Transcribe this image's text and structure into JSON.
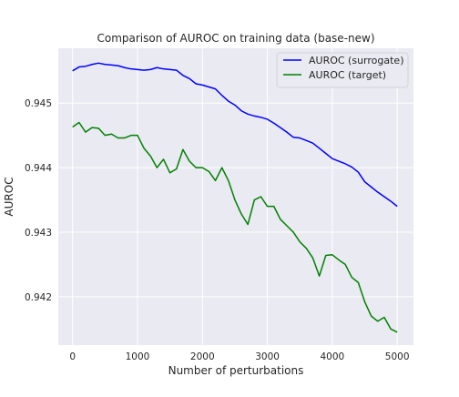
{
  "chart_data": {
    "type": "line",
    "title": "Comparison of AUROC on training data (base-new)",
    "xlabel": "Number of perturbations",
    "ylabel": "AUROC",
    "xlim": [
      -220,
      5250
    ],
    "ylim": [
      0.94125,
      0.94585
    ],
    "xticks": [
      0,
      1000,
      2000,
      3000,
      4000,
      5000
    ],
    "yticks": [
      0.942,
      0.943,
      0.944,
      0.945
    ],
    "xtick_labels": [
      "0",
      "1000",
      "2000",
      "3000",
      "4000",
      "5000"
    ],
    "ytick_labels": [
      "0.942",
      "0.943",
      "0.944",
      "0.945"
    ],
    "grid": true,
    "legend_position": "top-right",
    "x": [
      0,
      100,
      200,
      300,
      400,
      500,
      600,
      700,
      800,
      900,
      1000,
      1100,
      1200,
      1300,
      1400,
      1500,
      1600,
      1700,
      1800,
      1900,
      2000,
      2100,
      2200,
      2300,
      2400,
      2500,
      2600,
      2700,
      2800,
      2900,
      3000,
      3100,
      3200,
      3300,
      3400,
      3500,
      3600,
      3700,
      3800,
      3900,
      4000,
      4100,
      4200,
      4300,
      4400,
      4500,
      4600,
      4700,
      4800,
      4900,
      5000
    ],
    "series": [
      {
        "name": "AUROC (surrogate)",
        "color": "#0000ff",
        "values": [
          0.9455,
          0.94556,
          0.94557,
          0.9456,
          0.94562,
          0.9456,
          0.94559,
          0.94558,
          0.94555,
          0.94553,
          0.94552,
          0.94551,
          0.94552,
          0.94555,
          0.94553,
          0.94552,
          0.94551,
          0.94543,
          0.94538,
          0.9453,
          0.94528,
          0.94525,
          0.94522,
          0.94512,
          0.94503,
          0.94497,
          0.94488,
          0.94483,
          0.9448,
          0.94478,
          0.94475,
          0.94469,
          0.94462,
          0.94455,
          0.94447,
          0.94446,
          0.94442,
          0.94438,
          0.9443,
          0.94422,
          0.94414,
          0.9441,
          0.94406,
          0.94401,
          0.94393,
          0.94378,
          0.9437,
          0.94362,
          0.94355,
          0.94348,
          0.9434
        ]
      },
      {
        "name": "AUROC (target)",
        "color": "#008000",
        "values": [
          0.94463,
          0.9447,
          0.94455,
          0.94462,
          0.94461,
          0.9445,
          0.94452,
          0.94446,
          0.94446,
          0.9445,
          0.9445,
          0.9443,
          0.94418,
          0.944,
          0.94413,
          0.94392,
          0.94398,
          0.94428,
          0.9441,
          0.944,
          0.944,
          0.94394,
          0.9438,
          0.944,
          0.9438,
          0.9435,
          0.94328,
          0.94312,
          0.9435,
          0.94355,
          0.9434,
          0.9434,
          0.9432,
          0.9431,
          0.943,
          0.94285,
          0.94275,
          0.9426,
          0.94232,
          0.94264,
          0.94265,
          0.94257,
          0.9425,
          0.9423,
          0.94222,
          0.94192,
          0.9417,
          0.94162,
          0.94168,
          0.9415,
          0.94145
        ]
      }
    ]
  }
}
